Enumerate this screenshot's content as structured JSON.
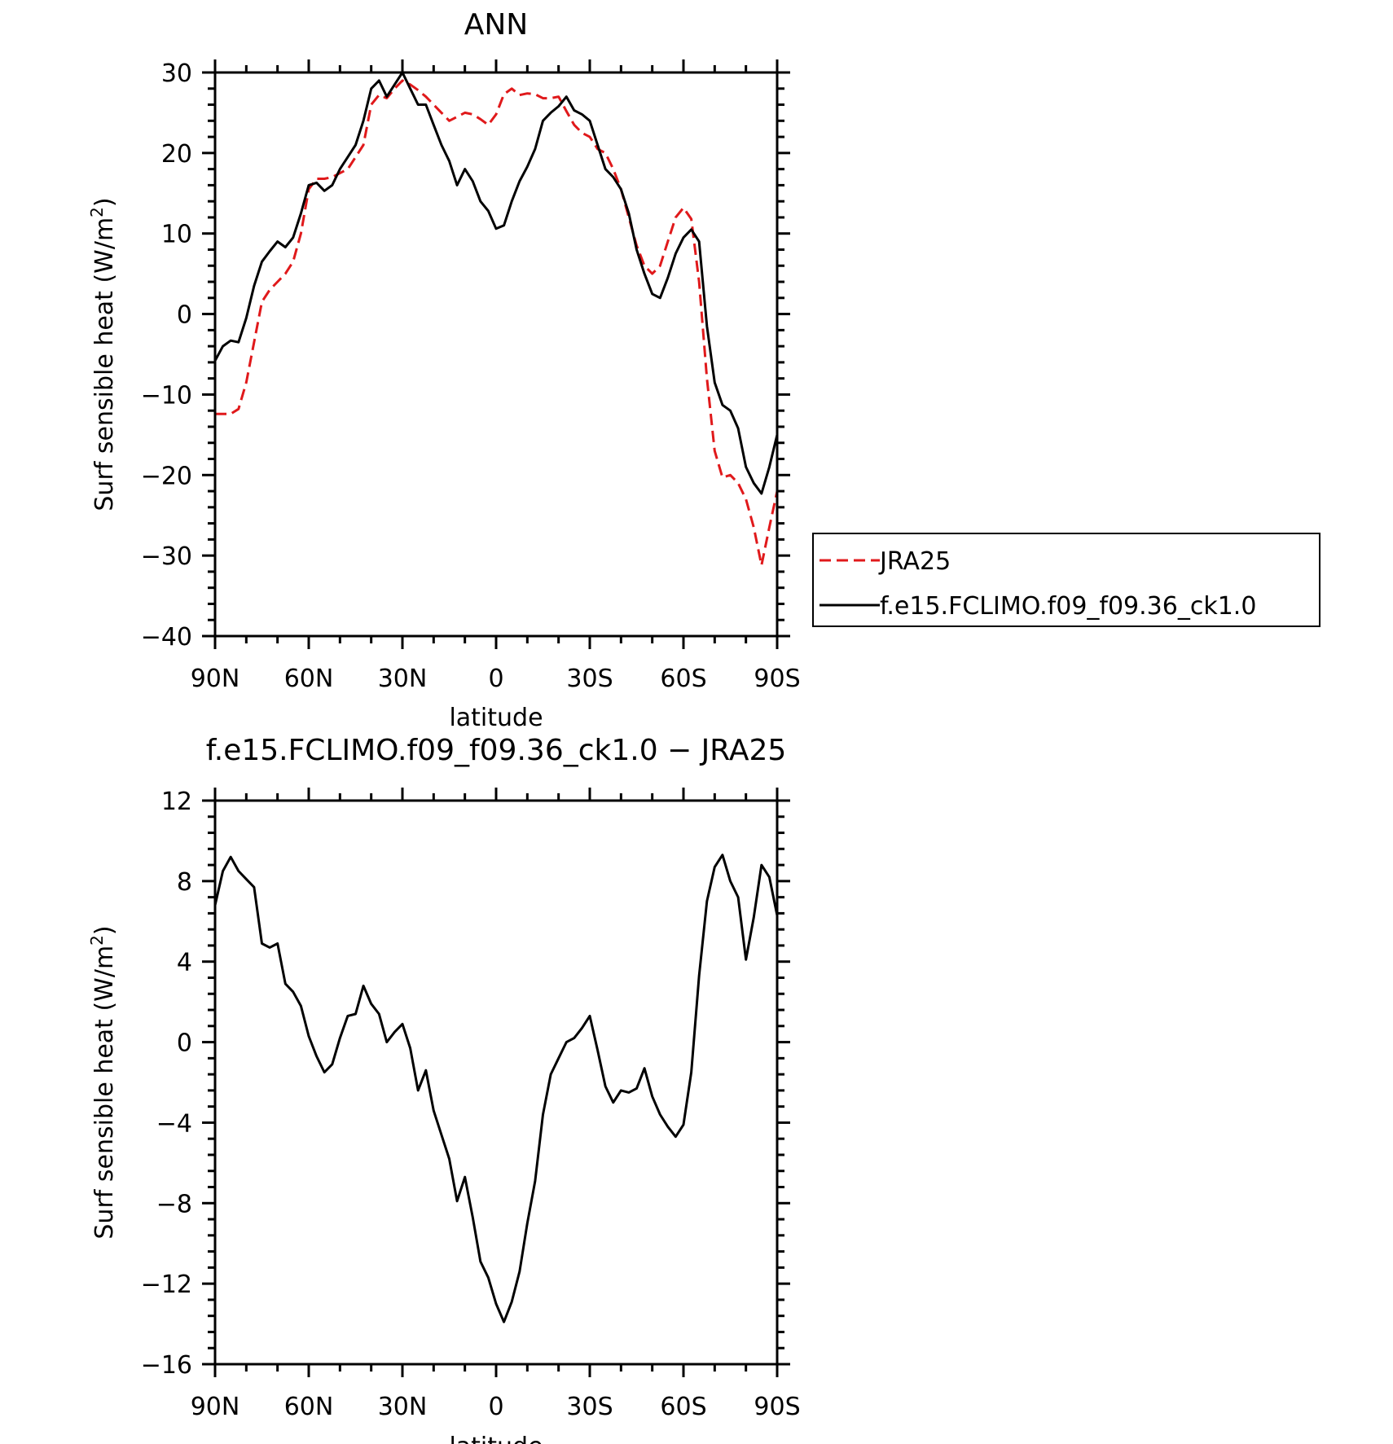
{
  "chart_data": [
    {
      "type": "line",
      "title": "ANN",
      "xlabel": "latitude",
      "ylabel": "Surf sensible heat (W/m",
      "ylabel_sup": "2",
      "ylabel_end": ")",
      "xlim": [
        90,
        -90
      ],
      "ylim": [
        -40,
        30
      ],
      "xticks": [
        90,
        60,
        30,
        0,
        -30,
        -60,
        -90
      ],
      "xtick_labels": [
        "90N",
        "60N",
        "30N",
        "0",
        "30S",
        "60S",
        "90S"
      ],
      "yticks": [
        30,
        20,
        10,
        0,
        -10,
        -20,
        -30,
        -40
      ],
      "ytick_labels": [
        "30",
        "20",
        "10",
        "0",
        "−10",
        "−20",
        "−30",
        "−40"
      ],
      "legend": "outside-right",
      "series": [
        {
          "name": "JRA25",
          "color": "#e0191b",
          "dash": "dashed",
          "x": [
            90,
            87.5,
            85,
            82.5,
            80,
            77.5,
            75,
            72.5,
            70,
            67.5,
            65,
            62.5,
            60,
            57.5,
            55,
            52.5,
            50,
            47.5,
            45,
            42.5,
            40,
            37.5,
            35,
            32.5,
            30,
            27.5,
            25,
            22.5,
            20,
            17.5,
            15,
            12.5,
            10,
            7.5,
            5,
            2.5,
            0,
            -2.5,
            -5,
            -7.5,
            -10,
            -12.5,
            -15,
            -17.5,
            -20,
            -22.5,
            -25,
            -27.5,
            -30,
            -32.5,
            -35,
            -37.5,
            -40,
            -42.5,
            -45,
            -47.5,
            -50,
            -52.5,
            -55,
            -57.5,
            -60,
            -62.5,
            -65,
            -67.5,
            -70,
            -72.5,
            -75,
            -77.5,
            -80,
            -82.5,
            -85,
            -87.5,
            -90
          ],
          "y": [
            -12.4,
            -12.4,
            -12.4,
            -11.8,
            -8.5,
            -3.5,
            1.5,
            3,
            4,
            5,
            6.5,
            10,
            15.5,
            16.8,
            16.8,
            17,
            17.5,
            18,
            19.5,
            21,
            26,
            27.2,
            26.8,
            28,
            29,
            28.5,
            27.8,
            27,
            26,
            25,
            24,
            24.5,
            25,
            24.8,
            24.2,
            23.5,
            24.8,
            27.3,
            28,
            27.2,
            27.4,
            27.3,
            26.8,
            26.8,
            27,
            25.2,
            23.5,
            22.5,
            22,
            20.5,
            20,
            18,
            15.5,
            12,
            8.5,
            6,
            5,
            6,
            9,
            12,
            13.2,
            11.8,
            4,
            -8,
            -17,
            -20.3,
            -20,
            -21,
            -23,
            -26.5,
            -31.2,
            -26.5,
            -22
          ]
        },
        {
          "name": "f.e15.FCLIMO.f09_f09.36_ck1.0",
          "color": "#000000",
          "dash": "solid",
          "x": [
            90,
            87.5,
            85,
            82.5,
            80,
            77.5,
            75,
            72.5,
            70,
            67.5,
            65,
            62.5,
            60,
            57.5,
            55,
            52.5,
            50,
            47.5,
            45,
            42.5,
            40,
            37.5,
            35,
            32.5,
            30,
            27.5,
            25,
            22.5,
            20,
            17.5,
            15,
            12.5,
            10,
            7.5,
            5,
            2.5,
            0,
            -2.5,
            -5,
            -7.5,
            -10,
            -12.5,
            -15,
            -17.5,
            -20,
            -22.5,
            -25,
            -27.5,
            -30,
            -32.5,
            -35,
            -37.5,
            -40,
            -42.5,
            -45,
            -47.5,
            -50,
            -52.5,
            -55,
            -57.5,
            -60,
            -62.5,
            -65,
            -67.5,
            -70,
            -72.5,
            -75,
            -77.5,
            -80,
            -82.5,
            -85,
            -87.5,
            -90
          ],
          "y": [
            -5.8,
            -4,
            -3.3,
            -3.5,
            -0.5,
            3.5,
            6.5,
            7.8,
            9,
            8.3,
            9.5,
            12.5,
            16,
            16.3,
            15.3,
            16,
            18,
            19.5,
            21,
            24,
            28,
            29,
            27,
            28.5,
            30,
            28,
            26,
            26,
            23.5,
            21,
            19,
            16,
            18,
            16.5,
            14,
            12.8,
            10.6,
            11,
            14,
            16.5,
            18.3,
            20.5,
            24,
            25,
            25.8,
            27,
            25.3,
            24.8,
            24,
            21,
            18,
            17,
            15.5,
            12.5,
            8,
            5,
            2.5,
            2,
            4.5,
            7.5,
            9.5,
            10.5,
            9,
            -1.5,
            -8.5,
            -11.3,
            -12,
            -14.2,
            -19,
            -21,
            -22.3,
            -19,
            -15
          ]
        }
      ]
    },
    {
      "type": "line",
      "title": "f.e15.FCLIMO.f09_f09.36_ck1.0 − JRA25",
      "xlabel": "latitude",
      "ylabel": "Surf sensible heat (W/m",
      "ylabel_sup": "2",
      "ylabel_end": ")",
      "xlim": [
        90,
        -90
      ],
      "ylim": [
        -16,
        12
      ],
      "xticks": [
        90,
        60,
        30,
        0,
        -30,
        -60,
        -90
      ],
      "xtick_labels": [
        "90N",
        "60N",
        "30N",
        "0",
        "30S",
        "60S",
        "90S"
      ],
      "yticks": [
        12,
        8,
        4,
        0,
        -4,
        -8,
        -12,
        -16
      ],
      "ytick_labels": [
        "12",
        "8",
        "4",
        "0",
        "−4",
        "−8",
        "−12",
        "−16"
      ],
      "series": [
        {
          "color": "#000000",
          "dash": "solid",
          "x": [
            90,
            87.5,
            85,
            82.5,
            80,
            77.5,
            75,
            72.5,
            70,
            67.5,
            65,
            62.5,
            60,
            57.5,
            55,
            52.5,
            50,
            47.5,
            45,
            42.5,
            40,
            37.5,
            35,
            32.5,
            30,
            27.5,
            25,
            22.5,
            20,
            17.5,
            15,
            12.5,
            10,
            7.5,
            5,
            2.5,
            0,
            -2.5,
            -5,
            -7.5,
            -10,
            -12.5,
            -15,
            -17.5,
            -20,
            -22.5,
            -25,
            -27.5,
            -30,
            -32.5,
            -35,
            -37.5,
            -40,
            -42.5,
            -45,
            -47.5,
            -50,
            -52.5,
            -55,
            -57.5,
            -60,
            -62.5,
            -65,
            -67.5,
            -70,
            -72.5,
            -75,
            -77.5,
            -80,
            -82.5,
            -85,
            -87.5,
            -90
          ],
          "y": [
            6.8,
            8.5,
            9.2,
            8.5,
            8.1,
            7.7,
            4.9,
            4.7,
            4.9,
            2.9,
            2.5,
            1.8,
            0.3,
            -0.7,
            -1.5,
            -1.1,
            0.2,
            1.3,
            1.4,
            2.8,
            1.9,
            1.4,
            0,
            0.5,
            0.9,
            -0.3,
            -2.4,
            -1.4,
            -3.4,
            -4.6,
            -5.8,
            -7.9,
            -6.7,
            -8.7,
            -10.9,
            -11.7,
            -13,
            -13.9,
            -12.9,
            -11.4,
            -9,
            -6.9,
            -3.6,
            -1.6,
            -0.8,
            0,
            0.2,
            0.7,
            1.3,
            -0.4,
            -2.2,
            -3,
            -2.4,
            -2.5,
            -2.3,
            -1.3,
            -2.7,
            -3.6,
            -4.2,
            -4.7,
            -4.1,
            -1.5,
            3.3,
            7,
            8.7,
            9.3,
            8,
            7.2,
            4.1,
            6.2,
            8.8,
            8.2,
            6.3
          ]
        }
      ]
    }
  ]
}
